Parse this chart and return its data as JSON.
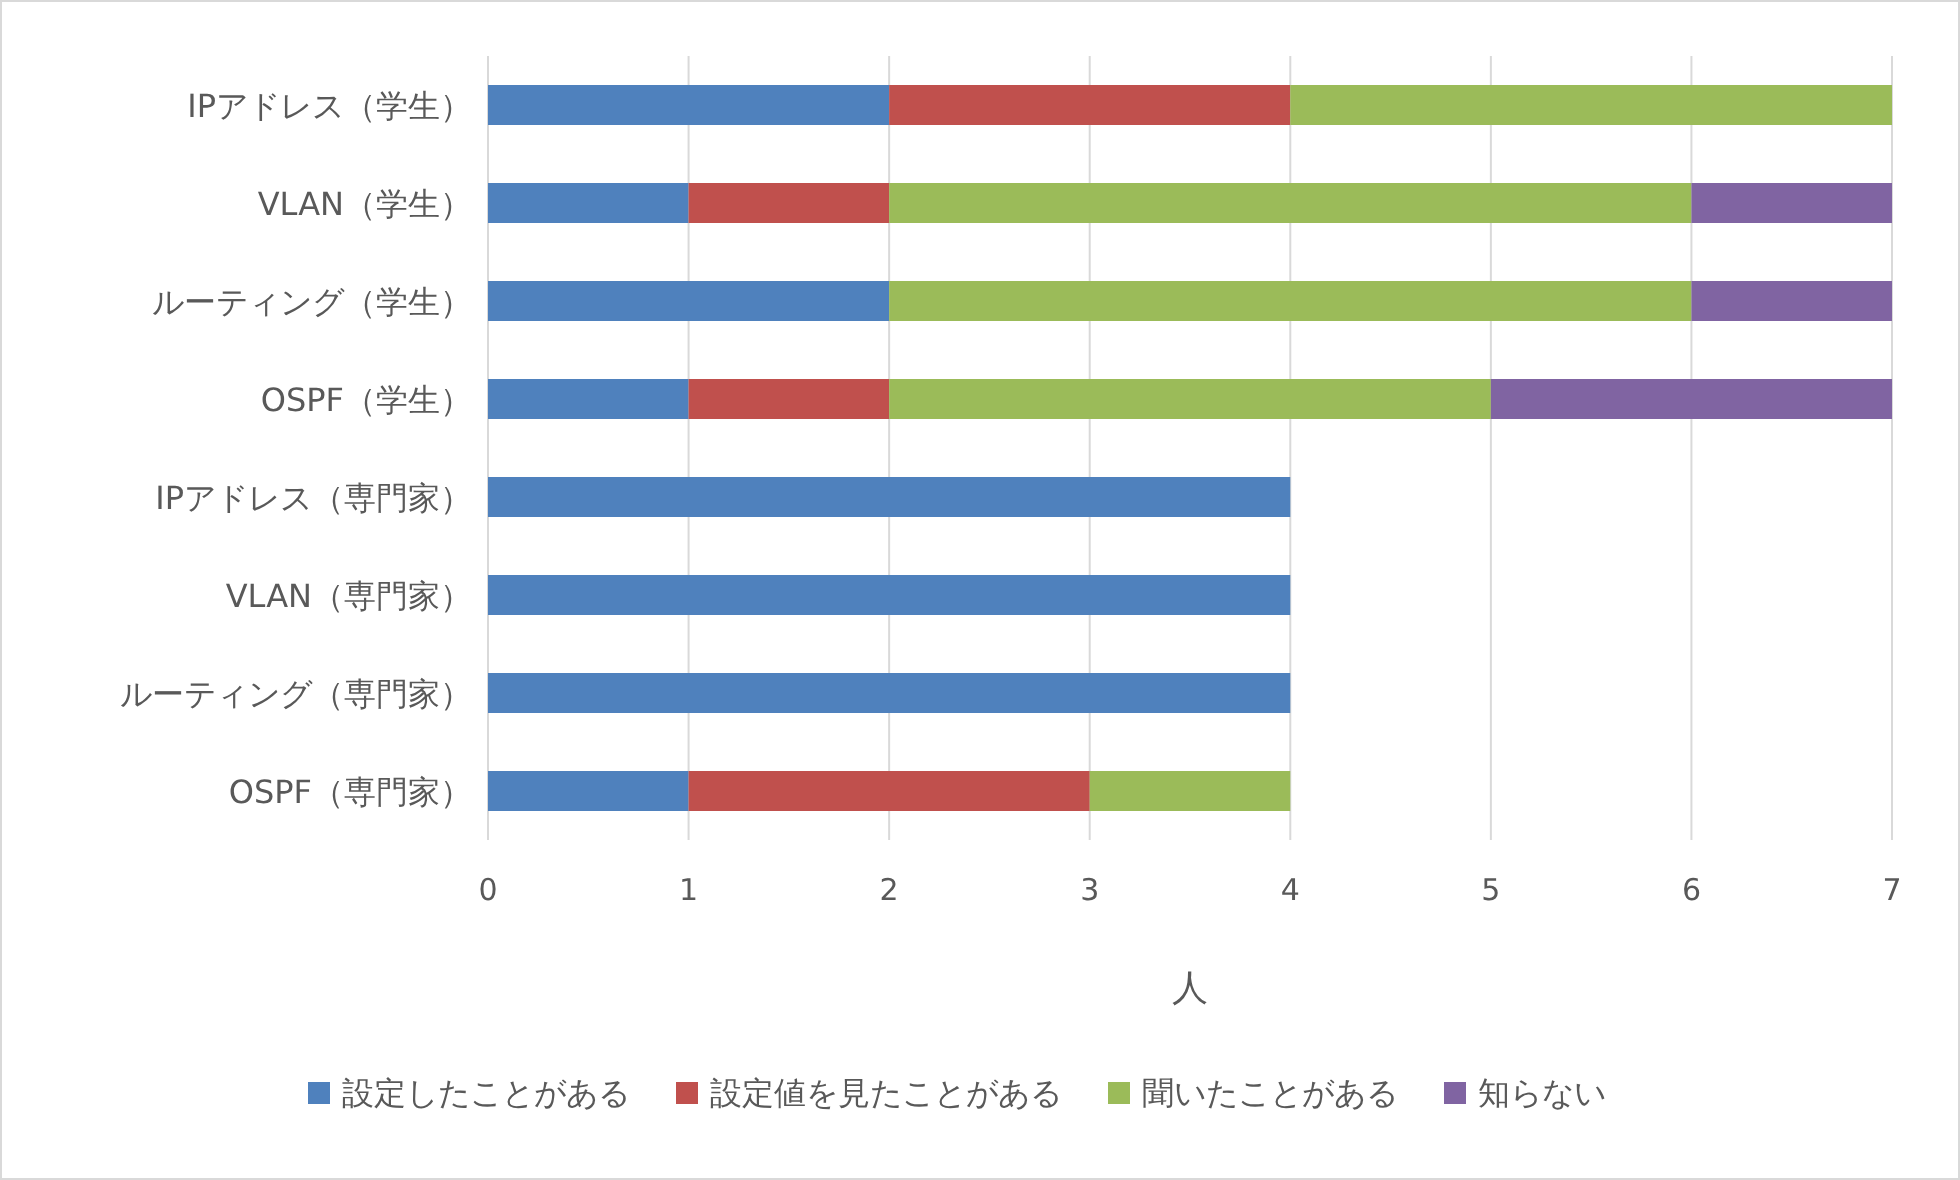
{
  "chart_data": {
    "type": "bar",
    "orientation": "horizontal",
    "stacked": true,
    "categories": [
      "IPアドレス（学生）",
      "VLAN（学生）",
      "ルーティング（学生）",
      "OSPF（学生）",
      "IPアドレス（専門家）",
      "VLAN（専門家）",
      "ルーティング（専門家）",
      "OSPF（専門家）"
    ],
    "series": [
      {
        "name": "設定したことがある",
        "color": "#4f81bd",
        "values": [
          2,
          1,
          2,
          1,
          4,
          4,
          4,
          1
        ]
      },
      {
        "name": "設定値を見たことがある",
        "color": "#c0504d",
        "values": [
          2,
          1,
          0,
          1,
          0,
          0,
          0,
          2
        ]
      },
      {
        "name": "聞いたことがある",
        "color": "#9bbb59",
        "values": [
          3,
          4,
          4,
          3,
          0,
          0,
          0,
          1
        ]
      },
      {
        "name": "知らない",
        "color": "#8064a2",
        "values": [
          0,
          1,
          1,
          2,
          0,
          0,
          0,
          0
        ]
      }
    ],
    "xlim": [
      0,
      7
    ],
    "xticks": [
      0,
      1,
      2,
      3,
      4,
      5,
      6,
      7
    ],
    "xlabel": "人",
    "grid": "x",
    "legend": "bottom"
  }
}
